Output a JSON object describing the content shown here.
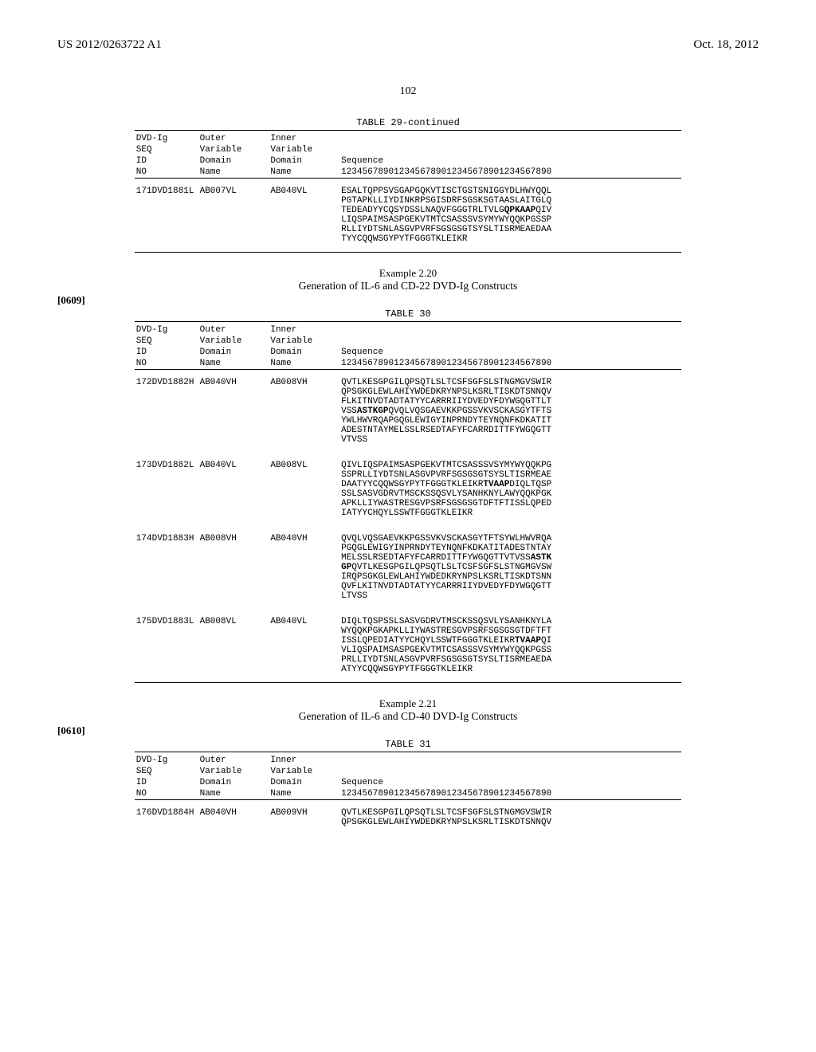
{
  "header": {
    "left": "US 2012/0263722 A1",
    "right": "Oct. 18, 2012"
  },
  "page_number": "102",
  "table29": {
    "title": "TABLE 29-continued",
    "head": {
      "c1a": "DVD-Ig",
      "c1b": "SEQ",
      "c1c": "ID",
      "c1d": "NO",
      "c2a": "Outer",
      "c2b": "Variable",
      "c2c": "Domain",
      "c2d": "Name",
      "c3a": "Inner",
      "c3b": "Variable",
      "c3c": "Domain",
      "c3d": "Name",
      "c4a": "Sequence",
      "c4b": "1234567890123456789012345678901234567890"
    },
    "rows": [
      {
        "seq_id": "171",
        "construct": "DVD1881L",
        "outer": "AB007VL",
        "inner": "AB040VL",
        "seq_html": "ESALTQPPSVSGAPGQKVTISCTGSTSNIGGYDLHWYQQL\nPGTAPKLLIYDINKRPSGISDRFSGSKSGTAASLAITGLQ\nTEDEADYYCQSYDSSLNAQVFGGGTRLTVLG<b>QPKAAP</b>QIV\nLIQSPAIMSASPGEKVTMTCSASSSVSYMYWYQQKPGSSP\nRLLIYDTSNLASGVPVRFSGSGSGTSYSLTISRMEAEDAA\nTYYCQQWSGYPYTFGGGTKLEIKR"
      }
    ]
  },
  "example220": {
    "title": "Example 2.20",
    "subtitle": "Generation of IL-6 and CD-22 DVD-Ig Constructs",
    "para": "[0609]"
  },
  "table30": {
    "title": "TABLE 30",
    "head": {
      "c1a": "DVD-Ig",
      "c1b": "SEQ",
      "c1c": "ID",
      "c1d": "NO",
      "c2a": "Outer",
      "c2b": "Variable",
      "c2c": "Domain",
      "c2d": "Name",
      "c3a": "Inner",
      "c3b": "Variable",
      "c3c": "Domain",
      "c3d": "Name",
      "c4a": "Sequence",
      "c4b": "1234567890123456789012345678901234567890"
    },
    "rows": [
      {
        "seq_id": "172",
        "construct": "DVD1882H",
        "outer": "AB040VH",
        "inner": "AB008VH",
        "seq_html": "QVTLKESGPGILQPSQTLSLTCSFSGFSLSTNGMGVSWIR\nQPSGKGLEWLAHIYWDEDKRYNPSLKSRLTISKDTSNNQV\nFLKITNVDTADTATYYCARRRIIYDVEDYFDYWGQGTTLT\nVSS<b>ASTKGP</b>QVQLVQSGAEVKKPGSSVKVSCKASGYTFTS\nYWLHWVRQAPGQGLEWIGYINPRNDYTEYNQNFKDKATIT\nADESTNTAYMELSSLRSEDTAFYFCARRDITTFYWGQGTT\nVTVSS"
      },
      {
        "seq_id": "173",
        "construct": "DVD1882L",
        "outer": "AB040VL",
        "inner": "AB008VL",
        "seq_html": "QIVLIQSPAIMSASPGEKVTMTCSASSSVSYMYWYQQKPG\nSSPRLLIYDTSNLASGVPVRFSGSGSGTSYSLTISRMEAE\nDAATYYCQQWSGYPYTFGGGTKLEIKR<b>TVAAP</b>DIQLTQSP\nSSLSASVGDRVTMSCKSSQSVLYSANHKNYLAWYQQKPGK\nAPKLLIYWASTRESGVPSRFSGSGSGTDFTFTISSLQPED\nIATYYCHQYLSSWTFGGGTKLEIKR"
      },
      {
        "seq_id": "174",
        "construct": "DVD1883H",
        "outer": "AB008VH",
        "inner": "AB040VH",
        "seq_html": "QVQLVQSGAEVKKPGSSVKVSCKASGYTFTSYWLHWVRQA\nPGQGLEWIGYINPRNDYTEYNQNFKDKATITADESTNTAY\nMELSSLRSEDTAFYFCARRDITTFYWGQGTTVTVSS<b>ASTK</b>\n<b>GP</b>QVTLKESGPGILQPSQTLSLTCSFSGFSLSTNGMGVSW\nIRQPSGKGLEWLAHIYWDEDKRYNPSLKSRLTISKDTSNN\nQVFLKITNVDTADTATYYCARRRIIYDVEDYFDYWGQGTT\nLTVSS"
      },
      {
        "seq_id": "175",
        "construct": "DVD1883L",
        "outer": "AB008VL",
        "inner": "AB040VL",
        "seq_html": "DIQLTQSPSSLSASVGDRVTMSCKSSQSVLYSANHKNYLA\nWYQQKPGKAPKLLIYWASTRESGVPSRFSGSGSGTDFTFT\nISSLQPEDIATYYCHQYLSSWTFGGGTKLEIKR<b>TVAAP</b>QI\nVLIQSPAIMSASPGEKVTMTCSASSSVSYMYWYQQKPGSS\nPRLLIYDTSNLASGVPVRFSGSGSGTSYSLTISRMEAEDA\nATYYCQQWSGYPYTFGGGTKLEIKR"
      }
    ]
  },
  "example221": {
    "title": "Example 2.21",
    "subtitle": "Generation of IL-6 and CD-40 DVD-Ig Constructs",
    "para": "[0610]"
  },
  "table31": {
    "title": "TABLE 31",
    "head": {
      "c1a": "DVD-Ig",
      "c1b": "SEQ",
      "c1c": "ID",
      "c1d": "NO",
      "c2a": "Outer",
      "c2b": "Variable",
      "c2c": "Domain",
      "c2d": "Name",
      "c3a": "Inner",
      "c3b": "Variable",
      "c3c": "Domain",
      "c3d": "Name",
      "c4a": "Sequence",
      "c4b": "1234567890123456789012345678901234567890"
    },
    "rows": [
      {
        "seq_id": "176",
        "construct": "DVD1884H",
        "outer": "AB040VH",
        "inner": "AB009VH",
        "seq_html": "QVTLKESGPGILQPSQTLSLTCSFSGFSLSTNGMGVSWIR\nQPSGKGLEWLAHIYWDEDKRYNPSLKSRLTISKDTSNNQV"
      }
    ]
  }
}
